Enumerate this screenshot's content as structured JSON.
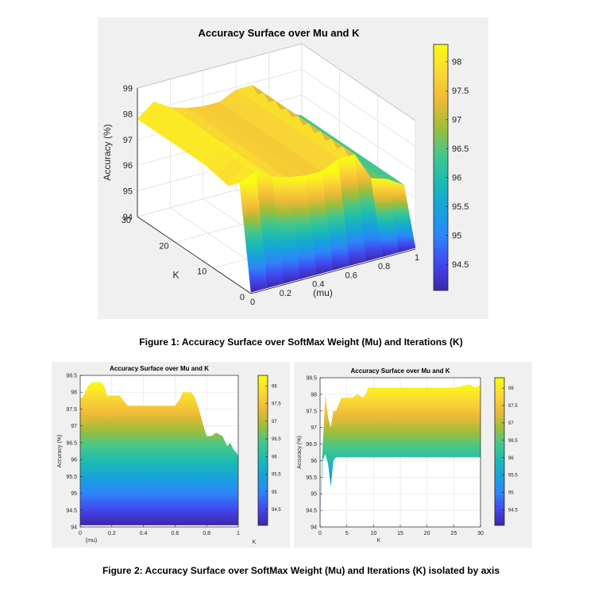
{
  "figure1": {
    "caption": "Figure 1: Accuracy Surface over SoftMax Weight (Mu) and Iterations (K)"
  },
  "figure2": {
    "caption": "Figure 2: Accuracy Surface over SoftMax Weight (Mu) and Iterations (K) isolated by axis"
  },
  "colors": {
    "panel": "#f0f0f0",
    "colormap": [
      "#3e26a8",
      "#4148ef",
      "#2e85f9",
      "#16a3db",
      "#1dbbb2",
      "#47c788",
      "#a3bd37",
      "#f0ba38",
      "#fad933",
      "#f9fb14"
    ]
  },
  "chart_data": [
    {
      "type": "surface",
      "title": "Accuracy Surface over Mu and K",
      "xlabel": "(mu)",
      "ylabel": "K",
      "zlabel": "Accuracy (%)",
      "x_ticks": [
        "0",
        "0.2",
        "0.4",
        "0.6",
        "0.8",
        "1"
      ],
      "y_ticks": [
        "0",
        "10",
        "20",
        "30"
      ],
      "z_ticks": [
        "94",
        "95",
        "96",
        "97",
        "98",
        "99"
      ],
      "xlim": [
        0,
        1
      ],
      "ylim": [
        0,
        30
      ],
      "zlim": [
        94,
        99
      ],
      "grid": true,
      "colorbar": {
        "ticks": [
          "94.5",
          "95",
          "95.5",
          "96",
          "96.5",
          "97",
          "97.5",
          "98"
        ],
        "range": [
          94.05,
          98.3
        ]
      },
      "mu": [
        0,
        0.1,
        0.2,
        0.3,
        0.4,
        0.5,
        0.6,
        0.7,
        0.8,
        0.9,
        1.0
      ],
      "k": [
        0,
        3,
        6,
        9,
        12,
        15,
        18,
        21,
        24,
        27,
        30
      ],
      "z": [
        [
          94.05,
          94.05,
          94.05,
          94.05,
          94.05,
          94.05,
          94.05,
          94.05,
          94.05,
          94.05,
          94.05
        ],
        [
          98.0,
          98.3,
          97.9,
          97.7,
          97.6,
          97.6,
          97.9,
          97.9,
          96.8,
          96.6,
          96.2
        ],
        [
          97.6,
          98.2,
          97.9,
          97.6,
          97.6,
          97.6,
          97.9,
          97.9,
          96.6,
          96.5,
          96.2
        ],
        [
          97.7,
          98.2,
          97.9,
          97.7,
          97.6,
          97.6,
          97.9,
          97.9,
          96.6,
          96.5,
          96.2
        ],
        [
          97.8,
          98.3,
          97.9,
          97.7,
          97.6,
          97.6,
          97.9,
          97.9,
          96.6,
          96.5,
          96.2
        ],
        [
          97.8,
          98.3,
          97.9,
          97.7,
          97.6,
          97.6,
          97.9,
          97.9,
          96.6,
          96.5,
          96.2
        ],
        [
          97.8,
          98.3,
          97.9,
          97.7,
          97.6,
          97.6,
          97.9,
          97.9,
          96.6,
          96.5,
          96.2
        ],
        [
          97.8,
          98.3,
          97.9,
          97.7,
          97.6,
          97.6,
          97.9,
          97.9,
          96.6,
          96.5,
          96.2
        ],
        [
          97.8,
          98.3,
          97.9,
          97.7,
          97.6,
          97.6,
          97.9,
          97.9,
          96.6,
          96.5,
          96.2
        ],
        [
          97.8,
          98.3,
          97.9,
          97.7,
          97.6,
          97.6,
          97.9,
          97.9,
          96.6,
          96.5,
          96.2
        ],
        [
          97.8,
          98.3,
          97.9,
          97.7,
          97.6,
          97.6,
          97.9,
          97.9,
          96.6,
          96.5,
          96.2
        ]
      ]
    },
    {
      "type": "area",
      "title": "Accuracy Surface over Mu and K",
      "xlabel": "(mu)",
      "ylabel": "Accuracy (%)",
      "extra_label": "K",
      "x_ticks": [
        "0",
        "0.2",
        "0.4",
        "0.6",
        "0.8",
        "1"
      ],
      "y_ticks": [
        "94",
        "94.5",
        "95",
        "95.5",
        "96",
        "96.5",
        "97",
        "97.5",
        "98",
        "98.5"
      ],
      "xlim": [
        0,
        1
      ],
      "ylim": [
        94,
        98.5
      ],
      "grid": true,
      "colorbar": {
        "ticks": [
          "94.5",
          "95",
          "95.5",
          "96",
          "96.5",
          "97",
          "97.5",
          "98"
        ],
        "range": [
          94.05,
          98.3
        ]
      },
      "x": [
        0,
        0.02,
        0.05,
        0.08,
        0.1,
        0.13,
        0.15,
        0.17,
        0.2,
        0.25,
        0.3,
        0.35,
        0.4,
        0.45,
        0.5,
        0.55,
        0.6,
        0.63,
        0.65,
        0.68,
        0.7,
        0.72,
        0.75,
        0.78,
        0.8,
        0.83,
        0.86,
        0.9,
        0.93,
        0.95,
        0.97,
        0.99,
        1.0
      ],
      "y": [
        97.8,
        97.9,
        98.2,
        98.3,
        98.3,
        98.3,
        98.2,
        97.9,
        97.9,
        97.9,
        97.6,
        97.6,
        97.6,
        97.6,
        97.6,
        97.6,
        97.6,
        97.8,
        98.0,
        98.0,
        98.0,
        97.9,
        97.5,
        97.0,
        96.7,
        96.7,
        96.8,
        96.7,
        96.4,
        96.5,
        96.3,
        96.2,
        96.1
      ]
    },
    {
      "type": "area",
      "title": "Accuracy Surface over Mu and K",
      "xlabel": "K",
      "ylabel": "Accuracy (%)",
      "x_ticks": [
        "0",
        "5",
        "10",
        "15",
        "20",
        "25",
        "30"
      ],
      "y_ticks": [
        "94",
        "94.5",
        "95",
        "95.5",
        "96",
        "96.5",
        "97",
        "97.5",
        "98",
        "98.5"
      ],
      "xlim": [
        0,
        30
      ],
      "ylim": [
        94,
        98.5
      ],
      "grid": true,
      "colorbar": {
        "ticks": [
          "94.5",
          "95",
          "95.5",
          "96",
          "96.5",
          "97",
          "97.5",
          "98"
        ],
        "range": [
          94.05,
          98.3
        ]
      },
      "x": [
        0,
        0.5,
        1,
        1.5,
        2,
        2.5,
        3,
        3.5,
        4,
        5,
        6,
        7,
        8,
        8.5,
        9,
        10,
        15,
        20,
        25,
        28,
        29,
        30
      ],
      "y_upper": [
        94.3,
        96.5,
        98.0,
        97.3,
        97.0,
        97.5,
        97.5,
        97.7,
        97.9,
        97.9,
        97.9,
        98.0,
        97.9,
        98.0,
        98.2,
        98.2,
        98.2,
        98.2,
        98.2,
        98.3,
        98.2,
        98.3
      ],
      "y_lower": [
        94.3,
        96.0,
        96.2,
        95.9,
        95.2,
        96.0,
        96.1,
        96.1,
        96.1,
        96.1,
        96.1,
        96.1,
        96.1,
        96.1,
        96.1,
        96.1,
        96.1,
        96.1,
        96.1,
        96.1,
        96.1,
        96.1
      ]
    }
  ]
}
